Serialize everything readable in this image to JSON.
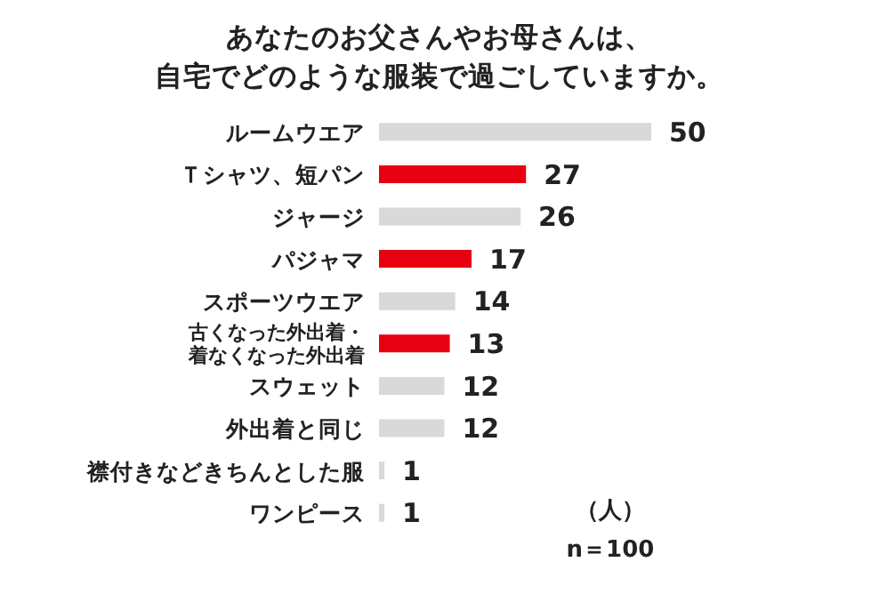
{
  "chart_data": {
    "type": "bar",
    "orientation": "horizontal",
    "title": "あなたのお父さんやお母さんは、自宅でどのような服装で過ごしていますか。",
    "categories": [
      "ルームウエア",
      "Ｔシャツ、短パン",
      "ジャージ",
      "パジャマ",
      "スポーツウエア",
      "古くなった外出着・着なくなった外出着",
      "スウェット",
      "外出着と同じ",
      "襟付きなどきちんとした服",
      "ワンピース"
    ],
    "values": [
      50,
      27,
      26,
      17,
      14,
      13,
      12,
      12,
      1,
      1
    ],
    "colors": [
      "#d9d9d9",
      "#e60012",
      "#d9d9d9",
      "#e60012",
      "#d9d9d9",
      "#e60012",
      "#d9d9d9",
      "#d9d9d9",
      "#d9d9d9",
      "#d9d9d9"
    ],
    "data_labels": true,
    "annotations": [
      "（人）",
      "n＝100"
    ]
  }
}
